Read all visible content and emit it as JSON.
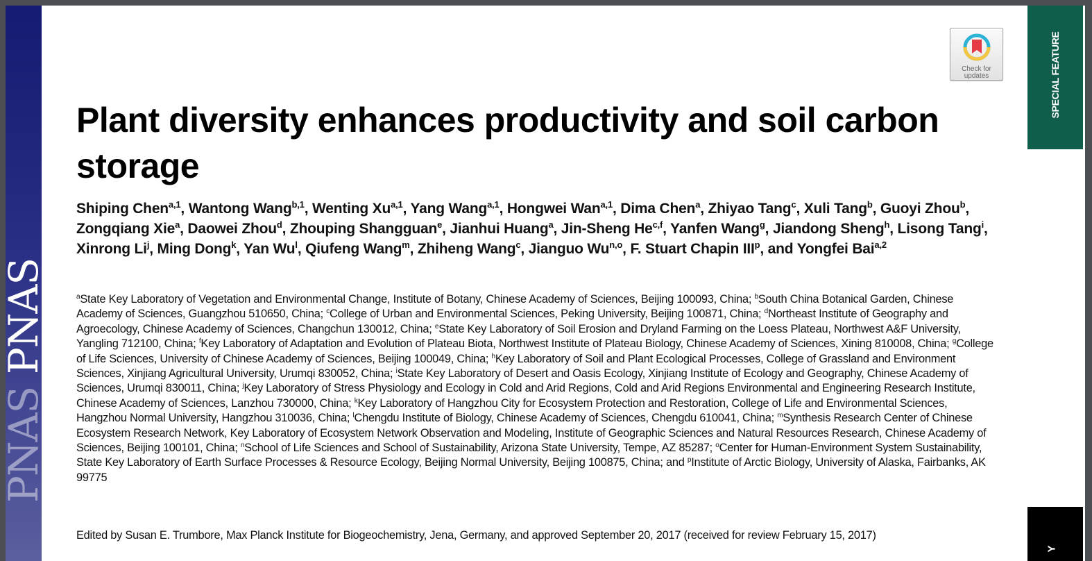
{
  "journal": {
    "brand": "PNAS",
    "section_tab": "SPECIAL FEATURE",
    "bottom_tab_fragment": "Y",
    "brand_color": "#1a1f78",
    "section_color": "#0f5e4b"
  },
  "badge": {
    "label_line1": "Check for",
    "label_line2": "updates",
    "icon": "bookmark-ring-icon"
  },
  "article": {
    "title": "Plant diversity enhances productivity and soil carbon storage",
    "authors": [
      {
        "name": "Shiping Chen",
        "sup": "a,1",
        "sep": ", "
      },
      {
        "name": "Wantong Wang",
        "sup": "b,1",
        "sep": ", "
      },
      {
        "name": "Wenting Xu",
        "sup": "a,1",
        "sep": ", "
      },
      {
        "name": "Yang Wang",
        "sup": "a,1",
        "sep": ", "
      },
      {
        "name": "Hongwei Wan",
        "sup": "a,1",
        "sep": ", "
      },
      {
        "name": "Dima Chen",
        "sup": "a",
        "sep": ", "
      },
      {
        "name": "Zhiyao Tang",
        "sup": "c",
        "sep": ", "
      },
      {
        "name": "Xuli Tang",
        "sup": "b",
        "sep": ", "
      },
      {
        "name": "Guoyi Zhou",
        "sup": "b",
        "sep": ", "
      },
      {
        "name": "Zongqiang Xie",
        "sup": "a",
        "sep": ", "
      },
      {
        "name": "Daowei Zhou",
        "sup": "d",
        "sep": ", "
      },
      {
        "name": "Zhouping Shangguan",
        "sup": "e",
        "sep": ", "
      },
      {
        "name": "Jianhui Huang",
        "sup": "a",
        "sep": ", "
      },
      {
        "name": "Jin-Sheng He",
        "sup": "c,f",
        "sep": ", "
      },
      {
        "name": "Yanfen Wang",
        "sup": "g",
        "sep": ", "
      },
      {
        "name": "Jiandong Sheng",
        "sup": "h",
        "sep": ", "
      },
      {
        "name": "Lisong Tang",
        "sup": "i",
        "sep": ", "
      },
      {
        "name": "Xinrong Li",
        "sup": "j",
        "sep": ", "
      },
      {
        "name": "Ming Dong",
        "sup": "k",
        "sep": ", "
      },
      {
        "name": "Yan Wu",
        "sup": "l",
        "sep": ", "
      },
      {
        "name": "Qiufeng Wang",
        "sup": "m",
        "sep": ", "
      },
      {
        "name": "Zhiheng Wang",
        "sup": "c",
        "sep": ", "
      },
      {
        "name": "Jianguo Wu",
        "sup": "n,o",
        "sep": ", "
      },
      {
        "name": "F. Stuart Chapin III",
        "sup": "p",
        "sep": ", and "
      },
      {
        "name": "Yongfei Bai",
        "sup": "a,2",
        "sep": ""
      }
    ],
    "affiliations": [
      {
        "sup": "a",
        "text": "State Key Laboratory of Vegetation and Environmental Change, Institute of Botany, Chinese Academy of Sciences, Beijing 100093, China; "
      },
      {
        "sup": "b",
        "text": "South China Botanical Garden, Chinese Academy of Sciences, Guangzhou 510650, China; "
      },
      {
        "sup": "c",
        "text": "College of Urban and Environmental Sciences, Peking University, Beijing 100871, China; "
      },
      {
        "sup": "d",
        "text": "Northeast Institute of Geography and Agroecology, Chinese Academy of Sciences, Changchun 130012, China; "
      },
      {
        "sup": "e",
        "text": "State Key Laboratory of Soil Erosion and Dryland Farming on the Loess Plateau, Northwest A&F University, Yangling 712100, China; "
      },
      {
        "sup": "f",
        "text": "Key Laboratory of Adaptation and Evolution of Plateau Biota, Northwest Institute of Plateau Biology, Chinese Academy of Sciences, Xining 810008, China; "
      },
      {
        "sup": "g",
        "text": "College of Life Sciences, University of Chinese Academy of Sciences, Beijing 100049, China; "
      },
      {
        "sup": "h",
        "text": "Key Laboratory of Soil and Plant Ecological Processes, College of Grassland and Environment Sciences, Xinjiang Agricultural University, Urumqi 830052, China; "
      },
      {
        "sup": "i",
        "text": "State Key Laboratory of Desert and Oasis Ecology, Xinjiang Institute of Ecology and Geography, Chinese Academy of Sciences, Urumqi 830011, China; "
      },
      {
        "sup": "j",
        "text": "Key Laboratory of Stress Physiology and Ecology in Cold and Arid Regions, Cold and Arid Regions Environmental and Engineering Research Institute, Chinese Academy of Sciences, Lanzhou 730000, China; "
      },
      {
        "sup": "k",
        "text": "Key Laboratory of Hangzhou City for Ecosystem Protection and Restoration, College of Life and Environmental Sciences, Hangzhou Normal University, Hangzhou 310036, China; "
      },
      {
        "sup": "l",
        "text": "Chengdu Institute of Biology, Chinese Academy of Sciences, Chengdu 610041, China; "
      },
      {
        "sup": "m",
        "text": "Synthesis Research Center of Chinese Ecosystem Research Network, Key Laboratory of Ecosystem Network Observation and Modeling, Institute of Geographic Sciences and Natural Resources Research, Chinese Academy of Sciences, Beijing 100101, China; "
      },
      {
        "sup": "n",
        "text": "School of Life Sciences and School of Sustainability, Arizona State University, Tempe, AZ 85287; "
      },
      {
        "sup": "o",
        "text": "Center for Human-Environment System Sustainability, State Key Laboratory of Earth Surface Processes & Resource Ecology, Beijing Normal University, Beijing 100875, China; and "
      },
      {
        "sup": "p",
        "text": "Institute of Arctic Biology, University of Alaska, Fairbanks, AK 99775"
      }
    ],
    "edited_by": "Edited by Susan E. Trumbore, Max Planck Institute for Biogeochemistry, Jena, Germany, and approved September 20, 2017 (received for review February 15, 2017)"
  }
}
